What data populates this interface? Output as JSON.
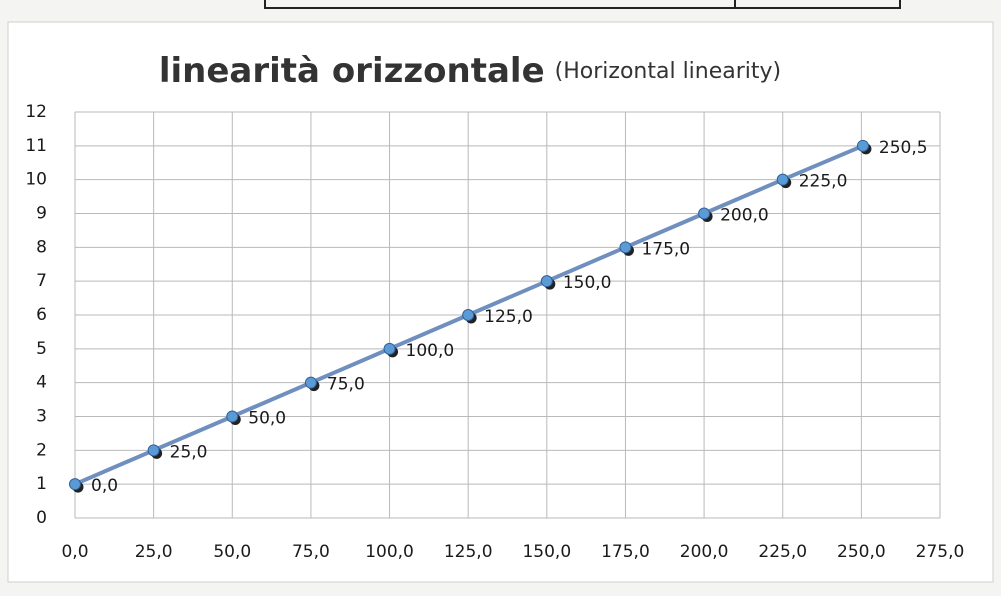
{
  "chart_data": {
    "type": "line",
    "title": "linearità orizzontale",
    "subtitle": "(Horizontal linearity)",
    "x": [
      0,
      25,
      50,
      75,
      100,
      125,
      150,
      175,
      200,
      225,
      250.5
    ],
    "values": [
      1,
      2,
      3,
      4,
      5,
      6,
      7,
      8,
      9,
      10,
      11
    ],
    "point_labels": [
      "0,0",
      "25,0",
      "50,0",
      "75,0",
      "100,0",
      "125,0",
      "150,0",
      "175,0",
      "200,0",
      "225,0",
      "250,5"
    ],
    "color": "#6f8fbf",
    "marker_color": "#5b9bd5",
    "xlim": [
      0,
      275
    ],
    "ylim": [
      0,
      12
    ],
    "xticks": [
      {
        "value": 0,
        "label": "0,0"
      },
      {
        "value": 25,
        "label": "25,0"
      },
      {
        "value": 50,
        "label": "50,0"
      },
      {
        "value": 75,
        "label": "75,0"
      },
      {
        "value": 100,
        "label": "100,0"
      },
      {
        "value": 125,
        "label": "125,0"
      },
      {
        "value": 150,
        "label": "150,0"
      },
      {
        "value": 175,
        "label": "175,0"
      },
      {
        "value": 200,
        "label": "200,0"
      },
      {
        "value": 225,
        "label": "225,0"
      },
      {
        "value": 250,
        "label": "250,0"
      },
      {
        "value": 275,
        "label": "275,0"
      }
    ],
    "yticks": [
      0,
      1,
      2,
      3,
      4,
      5,
      6,
      7,
      8,
      9,
      10,
      11,
      12
    ],
    "grid": true
  }
}
